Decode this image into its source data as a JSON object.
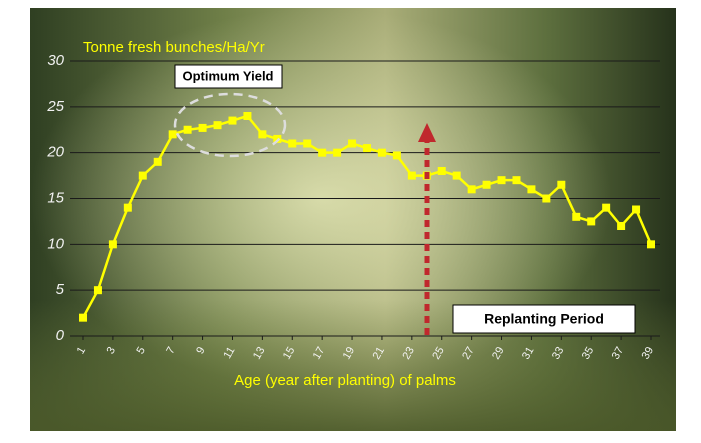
{
  "chart_data": {
    "type": "line",
    "y_label": "Tonne fresh bunches/Ha/Yr",
    "x_label": "Age (year after planting) of palms",
    "annotations": [
      "Optimum Yield",
      "Replanting Period"
    ],
    "x": [
      1,
      2,
      3,
      4,
      5,
      6,
      7,
      8,
      9,
      10,
      11,
      12,
      13,
      14,
      15,
      16,
      17,
      18,
      19,
      20,
      21,
      22,
      23,
      24,
      25,
      26,
      27,
      28,
      29,
      30,
      31,
      32,
      33,
      34,
      35,
      36,
      37,
      38,
      39
    ],
    "series": [
      {
        "color": "#ffff00",
        "values": [
          2,
          5,
          10,
          14,
          17.5,
          19,
          22,
          22.5,
          22.7,
          23,
          23.5,
          24,
          22,
          21.5,
          21,
          21,
          20,
          20,
          21,
          20.5,
          20,
          19.7,
          17.5,
          17.5,
          18,
          17.5,
          16,
          16.5,
          17,
          17,
          16,
          15,
          16.5,
          13,
          12.5,
          14,
          12,
          13.8,
          10
        ]
      }
    ],
    "xlim": [
      1,
      39
    ],
    "xticks": [
      1,
      3,
      5,
      7,
      9,
      11,
      13,
      15,
      17,
      19,
      21,
      23,
      25,
      27,
      29,
      31,
      33,
      35,
      37,
      39
    ],
    "ylim": [
      0,
      30
    ],
    "yticks": [
      0,
      5,
      10,
      15,
      20,
      25,
      30
    ],
    "grid": true
  }
}
